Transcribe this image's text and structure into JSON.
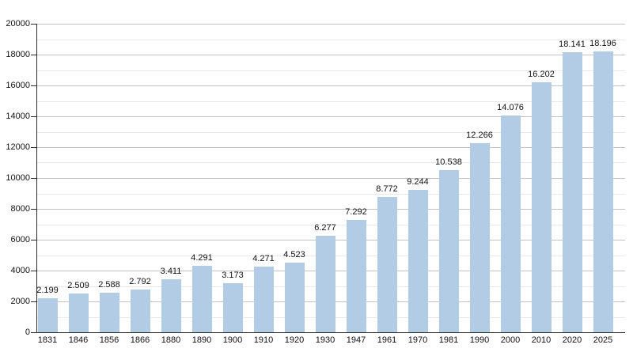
{
  "chart_data": {
    "type": "bar",
    "title": "",
    "xlabel": "",
    "ylabel": "",
    "categories": [
      "1831",
      "1846",
      "1856",
      "1866",
      "1880",
      "1890",
      "1900",
      "1910",
      "1920",
      "1930",
      "1947",
      "1961",
      "1970",
      "1981",
      "1990",
      "2000",
      "2010",
      "2020",
      "2025"
    ],
    "values": [
      2199,
      2509,
      2588,
      2792,
      3411,
      4291,
      3173,
      4271,
      4523,
      6277,
      7292,
      8772,
      9244,
      10538,
      12266,
      14076,
      16202,
      18141,
      18196
    ],
    "bar_value_labels": [
      "2.199",
      "2.509",
      "2.588",
      "2.792",
      "3.411",
      "4.291",
      "3.173",
      "4.271",
      "4.523",
      "6.277",
      "7.292",
      "8.772",
      "9.244",
      "10.538",
      "12.266",
      "14.076",
      "16.202",
      "18.141",
      "18.196"
    ],
    "ylim": [
      0,
      20000
    ],
    "y_major_tick_step": 2000,
    "y_minor_tick_step": 1000,
    "y_tick_labels": [
      "0",
      "2000",
      "4000",
      "6000",
      "8000",
      "10000",
      "12000",
      "14000",
      "16000",
      "18000",
      "20000"
    ],
    "grid": "horizontal, major every 2000 with faint minor every 1000",
    "legend_position": "none",
    "colors": {
      "bar_fill": "#b3cce6",
      "major_gridline": "#c3c3c3",
      "minor_gridline": "#e9e9e9",
      "axis": "#2b2b2b",
      "label_text": "#111111",
      "background": "#ffffff"
    }
  }
}
